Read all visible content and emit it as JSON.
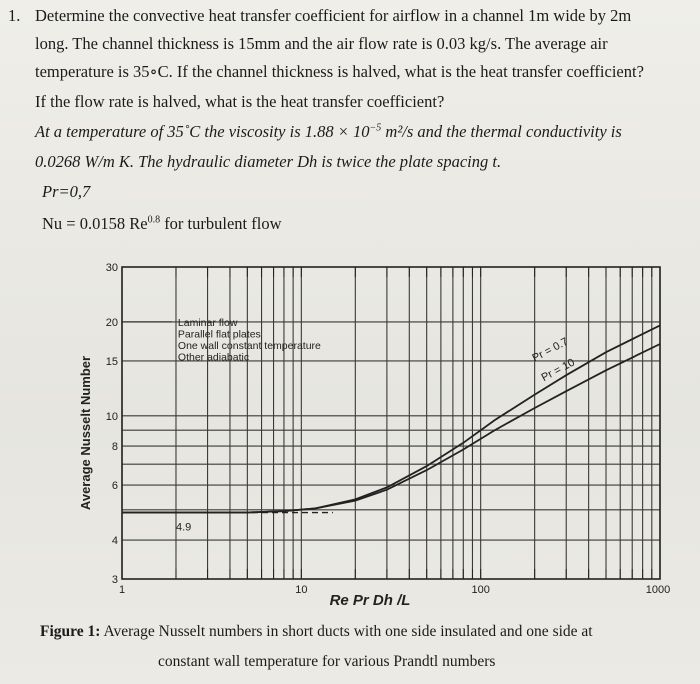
{
  "problem": {
    "number": "1.",
    "line1": "Determine the convective heat transfer coefficient for airflow in a channel 1m wide by 2m",
    "line2": "long. The channel thickness is 15mm and the air flow rate is 0.03 kg/s. The average air",
    "line3": "temperature is 35∘C. If the channel thickness is halved, what is the heat transfer coefficient?",
    "line4": "If the flow rate is halved, what is the heat transfer coefficient?",
    "line5a": "At a temperature of 35˚C the viscosity is 1.88 × 10",
    "line5exp": "−5",
    "line5b": " m²/s and the thermal conductivity is",
    "line6": "0.0268 W/m K. The hydraulic diameter Dh is twice the plate spacing t.",
    "line7": "Pr=0,7",
    "line8a": "Nu = 0.0158 Re",
    "line8exp": "0.8",
    "line8b": "  for turbulent flow"
  },
  "chart_data": {
    "type": "line",
    "xscale": "log",
    "yscale": "log",
    "xlim": [
      1,
      1000
    ],
    "ylim": [
      3,
      30
    ],
    "xlabel": "Re Pr Dh /L",
    "ylabel": "Average Nusselt Number",
    "xticks": [
      "1",
      "10",
      "100",
      "1000"
    ],
    "yticks": [
      "3",
      "4",
      "6",
      "8",
      "10",
      "15",
      "20",
      "30"
    ],
    "annotation": [
      "Laminar flow",
      "Parallel flat plates",
      "One wall constant temperature",
      "Other adiabatic"
    ],
    "asymptote_label": "4.9",
    "series": [
      {
        "name": "Pr = 0.7",
        "x": [
          1,
          5,
          8,
          12,
          20,
          30,
          50,
          80,
          120,
          200,
          300,
          500,
          1000
        ],
        "y": [
          4.9,
          4.9,
          4.95,
          5.05,
          5.4,
          5.9,
          6.9,
          8.2,
          9.7,
          11.7,
          13.5,
          16.0,
          19.5
        ]
      },
      {
        "name": "Pr = 10",
        "x": [
          1,
          5,
          8,
          12,
          20,
          30,
          50,
          80,
          120,
          200,
          300,
          500,
          1000
        ],
        "y": [
          4.9,
          4.9,
          4.95,
          5.05,
          5.35,
          5.8,
          6.7,
          7.8,
          9.0,
          10.6,
          12.0,
          14.0,
          17.0
        ]
      }
    ],
    "grid": true,
    "colors": {
      "line": "#222222",
      "grid": "#3a3a3a"
    }
  },
  "caption": {
    "label": "Figure 1:",
    "text1": " Average Nusselt numbers in short ducts with one side insulated and one side at",
    "text2": "constant wall temperature for various Prandtl numbers"
  }
}
